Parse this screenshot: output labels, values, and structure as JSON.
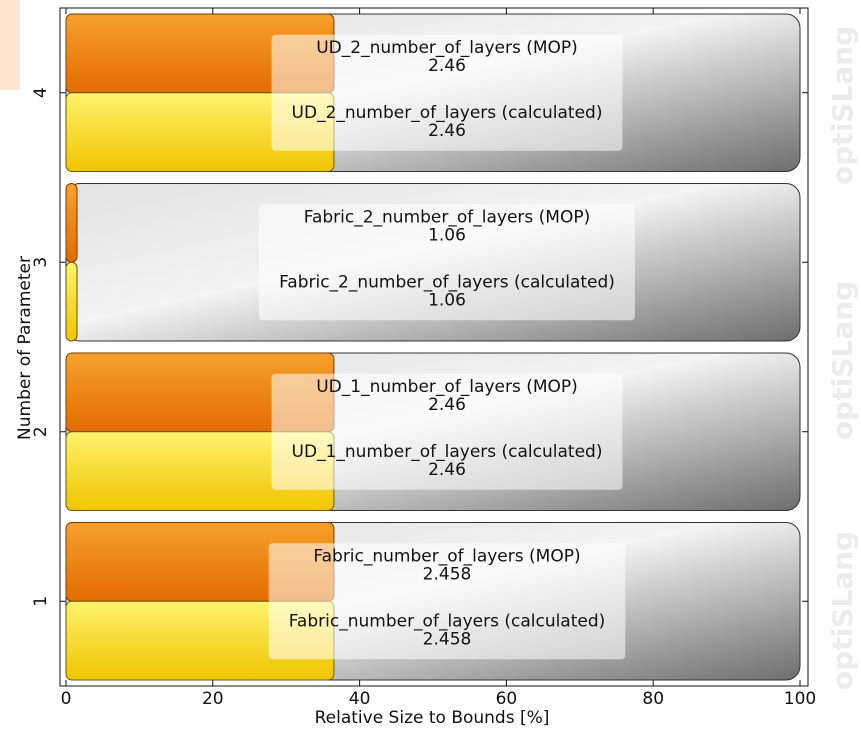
{
  "chart_data": {
    "type": "bar",
    "orientation": "horizontal",
    "xlabel": "Relative Size to Bounds [%]",
    "ylabel": "Number of Parameter",
    "xlim": [
      0,
      100
    ],
    "xticks": [
      "0",
      "20",
      "40",
      "60",
      "80",
      "100"
    ],
    "grid": false,
    "categories": [
      "1",
      "2",
      "3",
      "4"
    ],
    "series": [
      {
        "name": "MOP",
        "color": "#f07d0a",
        "values": [
          36.5,
          36.5,
          1.5,
          36.5
        ]
      },
      {
        "name": "calculated",
        "color": "#f6d60e",
        "values": [
          36.5,
          36.5,
          1.5,
          36.5
        ]
      }
    ],
    "annotations": [
      {
        "category": "1",
        "line1": "Fabric_number_of_layers (MOP)",
        "value1": "2.458",
        "line2": "Fabric_number_of_layers (calculated)",
        "value2": "2.458"
      },
      {
        "category": "2",
        "line1": "UD_1_number_of_layers (MOP)",
        "value1": "2.46",
        "line2": "UD_1_number_of_layers (calculated)",
        "value2": "2.46"
      },
      {
        "category": "3",
        "line1": "Fabric_2_number_of_layers (MOP)",
        "value1": "1.06",
        "line2": "Fabric_2_number_of_layers (calculated)",
        "value2": "1.06"
      },
      {
        "category": "4",
        "line1": "UD_2_number_of_layers (MOP)",
        "value1": "2.46",
        "line2": "UD_2_number_of_layers (calculated)",
        "value2": "2.46"
      }
    ],
    "watermark": "optiSLang"
  }
}
